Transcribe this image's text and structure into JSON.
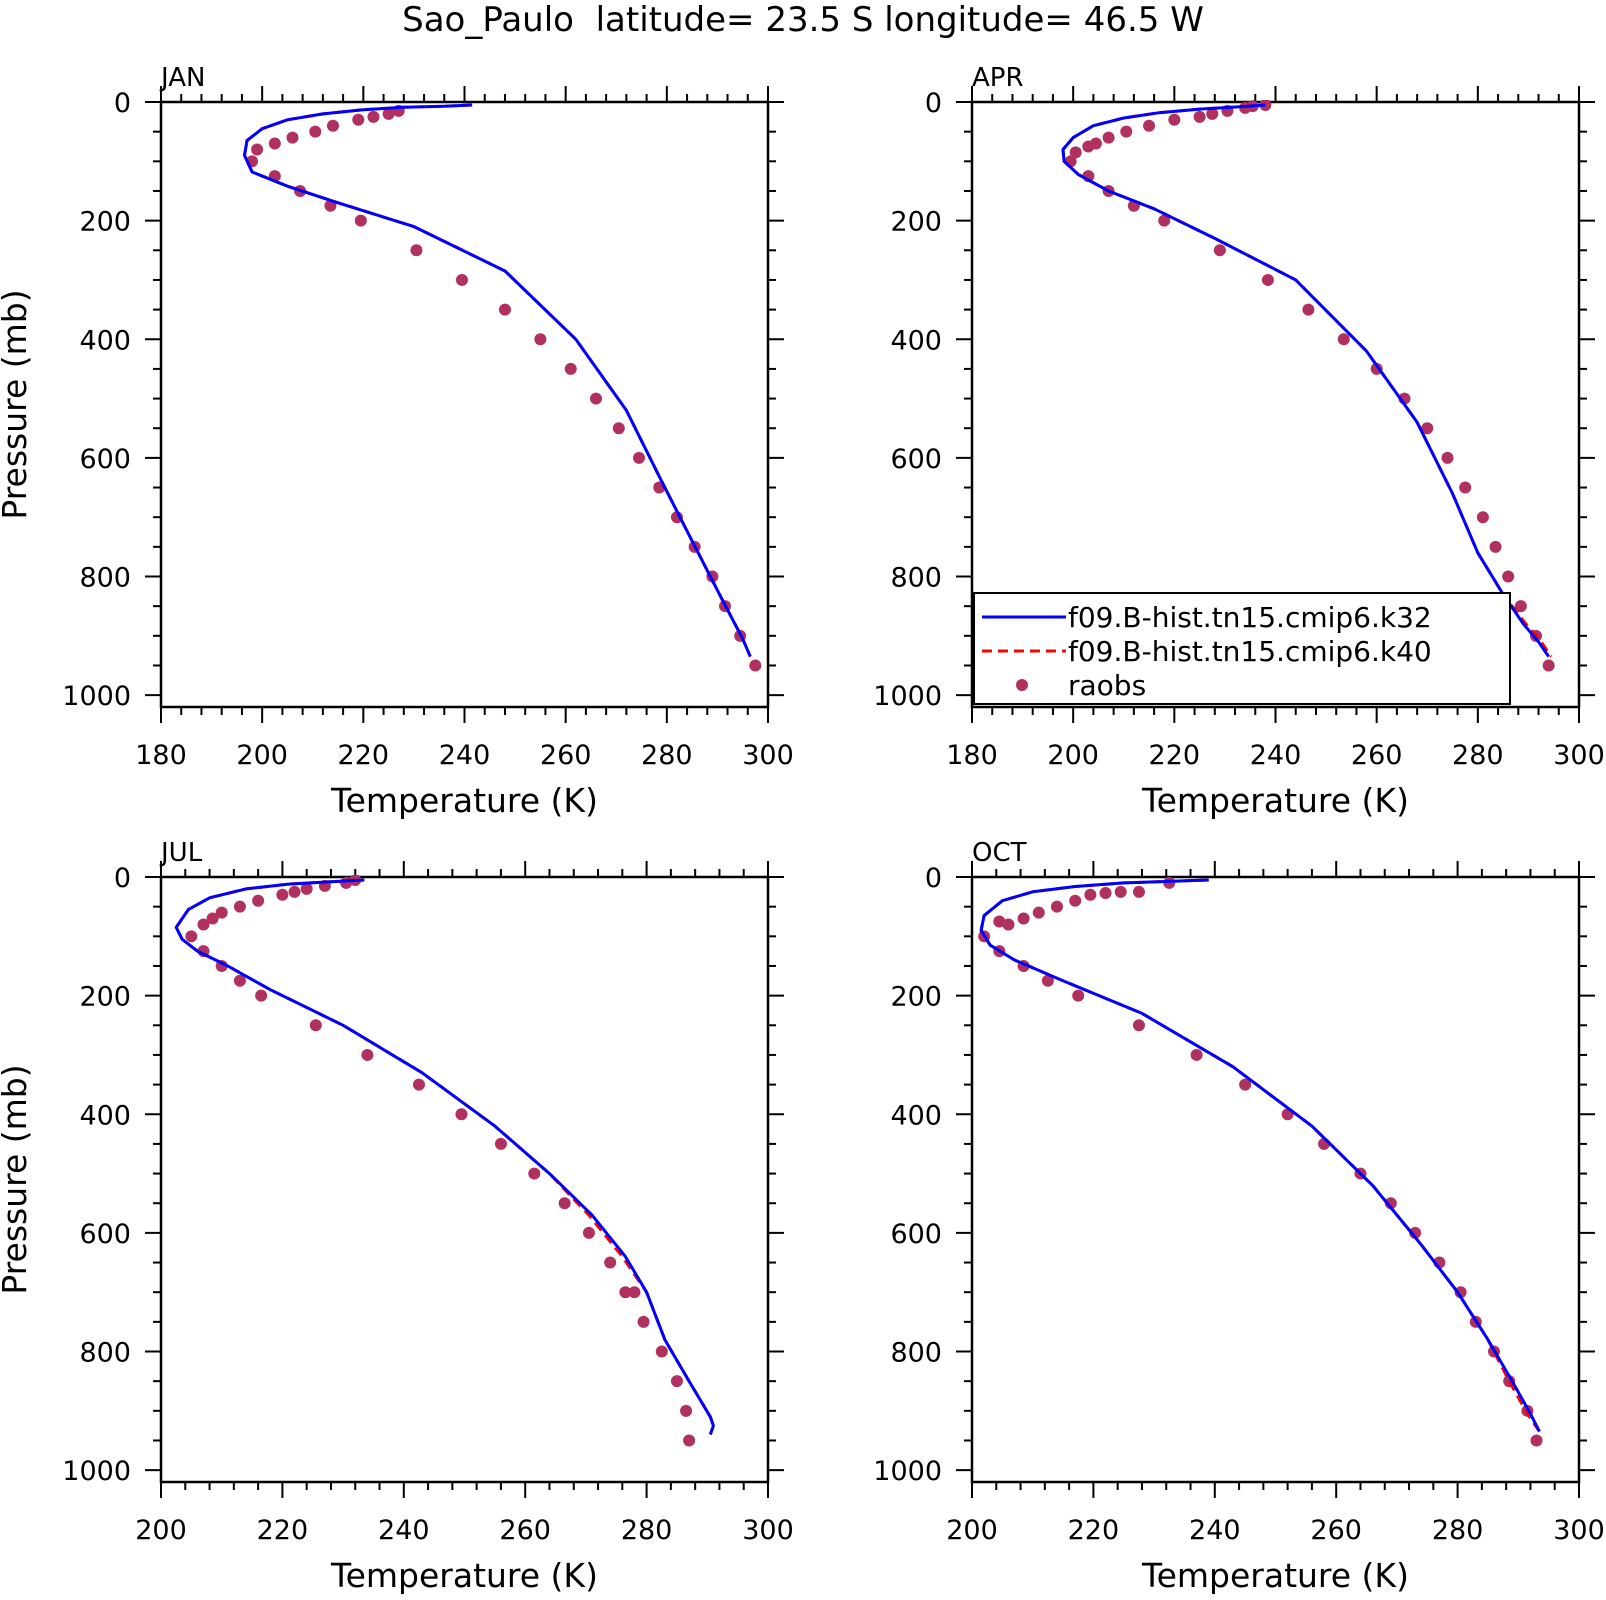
{
  "figure": {
    "title": "Sao_Paulo  latitude= 23.5 S longitude= 46.5 W"
  },
  "legend": {
    "entries": [
      {
        "label": "f09.B-hist.tn15.cmip6.k32",
        "color": "#0000ff",
        "style": "solid"
      },
      {
        "label": "f09.B-hist.tn15.cmip6.k40",
        "color": "#ff0000",
        "style": "dashed"
      },
      {
        "label": "raobs",
        "color": "#b03060",
        "style": "marker"
      }
    ]
  },
  "chart_data": [
    {
      "type": "line",
      "panel": "JAN",
      "xlabel": "Temperature (K)",
      "ylabel": "Pressure (mb)",
      "xlim": [
        180,
        300
      ],
      "ylim": [
        1020,
        0
      ],
      "xticks": [
        180,
        200,
        220,
        240,
        260,
        280,
        300
      ],
      "yticks": [
        0,
        200,
        400,
        600,
        800,
        1000
      ],
      "series": [
        {
          "name": "f09.B-hist.tn15.cmip6.k32",
          "color": "#0000ff",
          "x": [
            241.5,
            236,
            228,
            220,
            212,
            205,
            200,
            197,
            196.5,
            198,
            205,
            215,
            230,
            248,
            262,
            272,
            279,
            285,
            291,
            295,
            296.5
          ],
          "y": [
            5,
            7,
            9,
            13,
            20,
            30,
            45,
            65,
            90,
            118,
            142,
            170,
            210,
            285,
            400,
            520,
            640,
            740,
            840,
            905,
            935
          ]
        },
        {
          "name": "f09.B-hist.tn15.cmip6.k40",
          "color": "#ff0000",
          "x": [
            241.5,
            236,
            228,
            220,
            212,
            205,
            200,
            197,
            196.5,
            198,
            205,
            215,
            230,
            248,
            262,
            272,
            279,
            285,
            291,
            295,
            296.5
          ],
          "y": [
            5,
            7,
            9,
            13,
            20,
            30,
            45,
            65,
            90,
            118,
            142,
            170,
            210,
            285,
            400,
            520,
            640,
            740,
            840,
            905,
            935
          ]
        },
        {
          "name": "raobs",
          "color": "#b03060",
          "x": [
            227,
            225,
            222,
            219,
            214,
            210.5,
            206,
            202.5,
            199,
            198,
            202.5,
            207.5,
            213.5,
            219.5,
            230.5,
            239.5,
            248,
            255,
            261,
            266,
            270.5,
            274.5,
            278.5,
            282,
            285.5,
            289,
            291.5,
            294.5,
            297.5
          ],
          "y": [
            15,
            20,
            25,
            30,
            40,
            50,
            60,
            70,
            80,
            100,
            125,
            150,
            175,
            200,
            250,
            300,
            350,
            400,
            450,
            500,
            550,
            600,
            650,
            700,
            750,
            800,
            850,
            900,
            950
          ]
        }
      ]
    },
    {
      "type": "line",
      "panel": "APR",
      "xlabel": "Temperature (K)",
      "ylabel": "",
      "xlim": [
        180,
        300
      ],
      "ylim": [
        1020,
        0
      ],
      "xticks": [
        180,
        200,
        220,
        240,
        260,
        280,
        300
      ],
      "yticks": [
        0,
        200,
        400,
        600,
        800,
        1000
      ],
      "series": [
        {
          "name": "f09.B-hist.tn15.cmip6.k32",
          "color": "#0000ff",
          "x": [
            238,
            233,
            225,
            217,
            210,
            204,
            200,
            198,
            198.2,
            201,
            207,
            216,
            228,
            244,
            258,
            268,
            275,
            280,
            285,
            289,
            292,
            294
          ],
          "y": [
            5,
            8,
            12,
            18,
            27,
            40,
            60,
            80,
            100,
            122,
            150,
            180,
            230,
            300,
            420,
            540,
            660,
            760,
            830,
            880,
            910,
            935
          ]
        },
        {
          "name": "f09.B-hist.tn15.cmip6.k40",
          "color": "#ff0000",
          "x": [
            238,
            233,
            225,
            217,
            210,
            204,
            200,
            198,
            198.2,
            201,
            207,
            216,
            228,
            244,
            258,
            268,
            275,
            280,
            285,
            289.5,
            292.5,
            294.5
          ],
          "y": [
            5,
            8,
            12,
            18,
            27,
            40,
            60,
            80,
            100,
            122,
            150,
            180,
            230,
            300,
            420,
            540,
            660,
            760,
            830,
            880,
            910,
            935
          ]
        },
        {
          "name": "raobs",
          "color": "#b03060",
          "x": [
            238,
            235.5,
            234,
            230.5,
            227.5,
            225,
            220,
            215,
            210.5,
            207,
            204.5,
            203,
            200.5,
            199.5,
            203,
            207,
            212,
            218,
            229,
            238.5,
            246.5,
            253.5,
            260,
            265.5,
            270,
            274,
            277.5,
            281,
            283.5,
            286,
            288.5,
            291.5,
            294
          ],
          "y": [
            5,
            7,
            10,
            15,
            20,
            25,
            30,
            40,
            50,
            60,
            70,
            75,
            85,
            100,
            125,
            150,
            175,
            200,
            250,
            300,
            350,
            400,
            450,
            500,
            550,
            600,
            650,
            700,
            750,
            800,
            850,
            900,
            950
          ]
        }
      ]
    },
    {
      "type": "line",
      "panel": "JUL",
      "xlabel": "Temperature (K)",
      "ylabel": "Pressure (mb)",
      "xlim": [
        200,
        300
      ],
      "ylim": [
        1020,
        0
      ],
      "xticks": [
        200,
        220,
        240,
        260,
        280,
        300
      ],
      "yticks": [
        0,
        200,
        400,
        600,
        800,
        1000
      ],
      "series": [
        {
          "name": "f09.B-hist.tn15.cmip6.k32",
          "color": "#0000ff",
          "x": [
            233.5,
            228,
            221,
            214,
            208,
            204.5,
            202.5,
            203.5,
            206,
            211,
            218,
            230,
            243,
            255,
            264,
            271,
            276.5,
            280,
            283,
            287,
            290.5,
            291,
            290.5
          ],
          "y": [
            5,
            8,
            12,
            20,
            35,
            55,
            85,
            105,
            125,
            150,
            190,
            250,
            330,
            420,
            500,
            570,
            640,
            700,
            780,
            850,
            910,
            925,
            940
          ]
        },
        {
          "name": "f09.B-hist.tn15.cmip6.k40",
          "color": "#ff0000",
          "x": [
            233.5,
            228,
            221,
            214,
            208,
            204.5,
            202.5,
            203.5,
            206,
            211,
            218,
            230,
            243,
            255,
            264,
            270.5,
            276,
            280,
            283,
            287,
            290.5,
            291,
            290.5
          ],
          "y": [
            5,
            8,
            12,
            20,
            35,
            55,
            85,
            105,
            125,
            150,
            190,
            250,
            330,
            420,
            500,
            570,
            640,
            700,
            780,
            850,
            910,
            925,
            940
          ]
        },
        {
          "name": "raobs",
          "color": "#b03060",
          "x": [
            232,
            230.5,
            227,
            224,
            222,
            220,
            216,
            213,
            210,
            208.5,
            207,
            205,
            207,
            210,
            213,
            216.5,
            225.5,
            234,
            242.5,
            249.5,
            256,
            261.5,
            266.5,
            270.5,
            274,
            276.5,
            278,
            279.5,
            282.5,
            285,
            286.5,
            287
          ],
          "y": [
            5,
            10,
            15,
            20,
            25,
            30,
            40,
            50,
            60,
            70,
            80,
            100,
            125,
            150,
            175,
            200,
            250,
            300,
            350,
            400,
            450,
            500,
            550,
            600,
            650,
            700,
            700,
            750,
            800,
            850,
            900,
            950
          ]
        }
      ]
    },
    {
      "type": "line",
      "panel": "OCT",
      "xlabel": "Temperature (K)",
      "ylabel": "",
      "xlim": [
        200,
        300
      ],
      "ylim": [
        1020,
        0
      ],
      "xticks": [
        200,
        220,
        240,
        260,
        280,
        300
      ],
      "yticks": [
        0,
        200,
        400,
        600,
        800,
        1000
      ],
      "series": [
        {
          "name": "f09.B-hist.tn15.cmip6.k32",
          "color": "#0000ff",
          "x": [
            239,
            233,
            225,
            217,
            210,
            205,
            202,
            201.5,
            203,
            207,
            215,
            228,
            243,
            256,
            266,
            274,
            280,
            285,
            289,
            292,
            293.5
          ],
          "y": [
            5,
            7,
            10,
            16,
            25,
            40,
            65,
            90,
            115,
            140,
            175,
            230,
            320,
            420,
            520,
            620,
            700,
            780,
            850,
            905,
            935
          ]
        },
        {
          "name": "f09.B-hist.tn15.cmip6.k40",
          "color": "#ff0000",
          "x": [
            239,
            233,
            225,
            217,
            210,
            205,
            202,
            201.5,
            203,
            207,
            215,
            228,
            243,
            256,
            266,
            274,
            280,
            285,
            288.5,
            291.5,
            293.5
          ],
          "y": [
            5,
            7,
            10,
            16,
            25,
            40,
            65,
            90,
            115,
            140,
            175,
            230,
            320,
            420,
            520,
            620,
            700,
            780,
            850,
            905,
            935
          ]
        },
        {
          "name": "raobs",
          "color": "#b03060",
          "x": [
            232.5,
            227.5,
            224.5,
            222,
            219.5,
            217,
            214,
            211,
            208.5,
            206,
            204.5,
            202,
            204.5,
            208.5,
            212.5,
            217.5,
            227.5,
            237,
            245,
            252,
            258,
            264,
            269,
            273,
            277,
            280.5,
            283,
            286,
            288.5,
            291.5,
            293
          ],
          "y": [
            10,
            25,
            25,
            27,
            30,
            40,
            50,
            60,
            70,
            80,
            75,
            100,
            125,
            150,
            175,
            200,
            250,
            300,
            350,
            400,
            450,
            500,
            550,
            600,
            650,
            700,
            750,
            800,
            850,
            900,
            950
          ]
        }
      ]
    }
  ]
}
